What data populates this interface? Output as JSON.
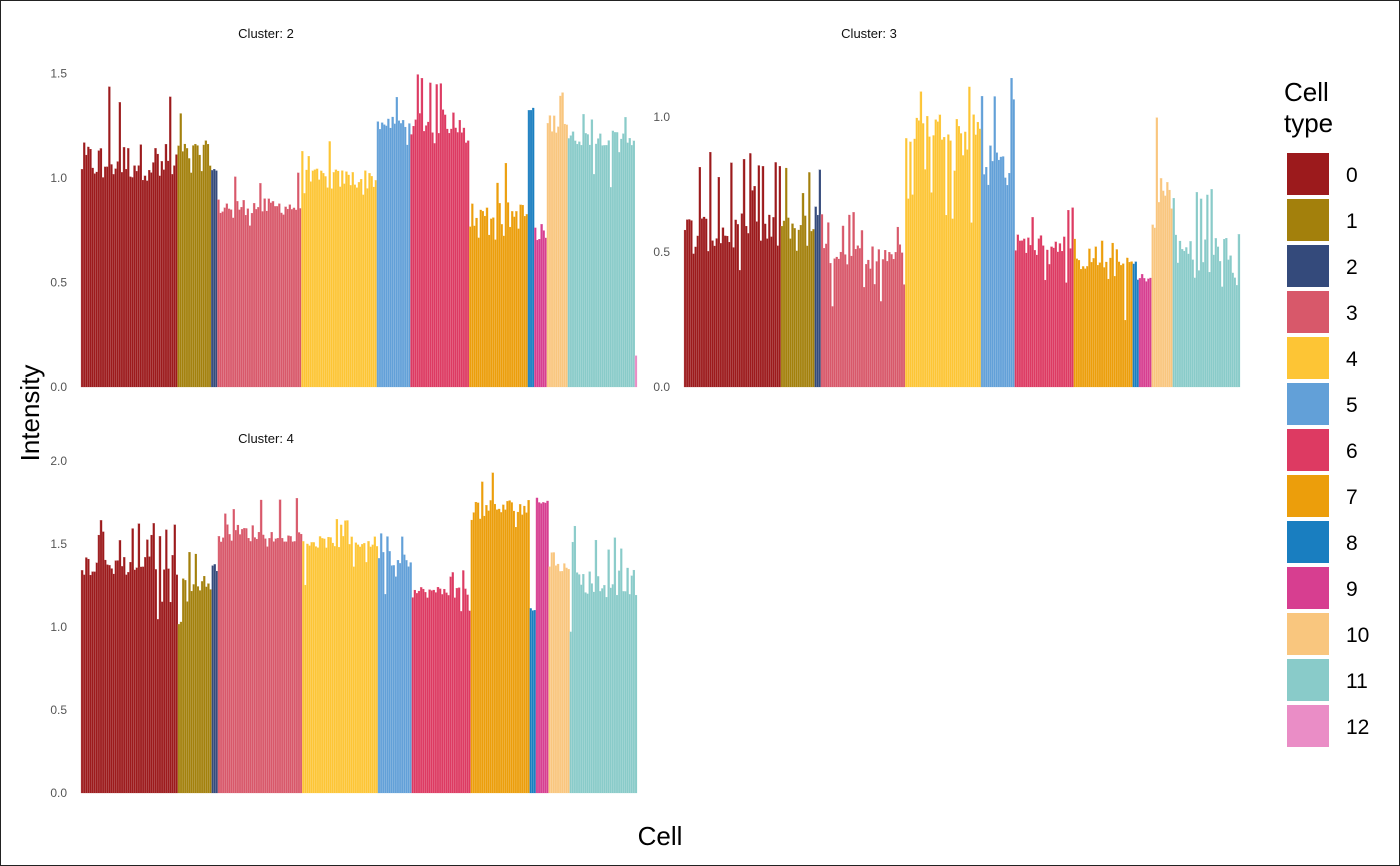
{
  "chart_data": {
    "type": "bar",
    "xlabel": "Cell",
    "ylabel": "Intensity",
    "legend": {
      "title": "Cell type",
      "title_lines": [
        "Cell",
        "type"
      ],
      "placement": "right",
      "entries": [
        {
          "label": "0",
          "color": "#9C1A1C"
        },
        {
          "label": "1",
          "color": "#A3800C"
        },
        {
          "label": "2",
          "color": "#344A7B"
        },
        {
          "label": "3",
          "color": "#D8586A"
        },
        {
          "label": "4",
          "color": "#FDC535"
        },
        {
          "label": "5",
          "color": "#62A0D8"
        },
        {
          "label": "6",
          "color": "#DD3A62"
        },
        {
          "label": "7",
          "color": "#EC9E0B"
        },
        {
          "label": "8",
          "color": "#197EC0"
        },
        {
          "label": "9",
          "color": "#D73E90"
        },
        {
          "label": "10",
          "color": "#F9C67E"
        },
        {
          "label": "11",
          "color": "#89CBC9"
        },
        {
          "label": "12",
          "color": "#EA8DC6"
        }
      ]
    },
    "panels": [
      {
        "title": "Cluster: 2",
        "ylim": [
          0,
          1.55
        ],
        "yticks": [
          "0.0",
          "0.5",
          "1.0",
          "1.5"
        ],
        "yticks_values": [
          0,
          0.5,
          1.0,
          1.5
        ],
        "groups": [
          {
            "type": 0,
            "n": 46,
            "base": 1.05,
            "hi": 1.46,
            "lo": 0.96
          },
          {
            "type": 1,
            "n": 16,
            "base": 1.1,
            "hi": 1.37,
            "lo": 1.0
          },
          {
            "type": 2,
            "n": 3,
            "base": 1.03,
            "hi": 1.11,
            "lo": 0.95
          },
          {
            "type": 3,
            "n": 40,
            "base": 0.85,
            "hi": 1.03,
            "lo": 0.76
          },
          {
            "type": 4,
            "n": 36,
            "base": 0.98,
            "hi": 1.2,
            "lo": 0.89
          },
          {
            "type": 5,
            "n": 16,
            "base": 1.25,
            "hi": 1.41,
            "lo": 1.14
          },
          {
            "type": 6,
            "n": 28,
            "base": 1.25,
            "hi": 1.52,
            "lo": 1.15
          },
          {
            "type": 7,
            "n": 28,
            "base": 0.8,
            "hi": 1.1,
            "lo": 0.7
          },
          {
            "type": 8,
            "n": 3,
            "base": 1.32,
            "hi": 1.39,
            "lo": 1.25
          },
          {
            "type": 9,
            "n": 6,
            "base": 0.7,
            "hi": 0.78,
            "lo": 0.6
          },
          {
            "type": 10,
            "n": 10,
            "base": 1.25,
            "hi": 1.47,
            "lo": 1.06
          },
          {
            "type": 11,
            "n": 32,
            "base": 1.18,
            "hi": 1.34,
            "lo": 0.92
          },
          {
            "type": 12,
            "n": 1,
            "base": 0.15,
            "hi": 0.15,
            "lo": 0.15
          }
        ]
      },
      {
        "title": "Cluster: 3",
        "ylim": [
          0,
          1.2
        ],
        "yticks": [
          "0.0",
          "0.5",
          "1.0"
        ],
        "yticks_values": [
          0,
          0.5,
          1.0
        ],
        "groups": [
          {
            "type": 0,
            "n": 46,
            "base": 0.55,
            "hi": 0.87,
            "lo": 0.38
          },
          {
            "type": 1,
            "n": 16,
            "base": 0.58,
            "hi": 0.82,
            "lo": 0.42
          },
          {
            "type": 2,
            "n": 3,
            "base": 0.66,
            "hi": 0.88,
            "lo": 0.5
          },
          {
            "type": 3,
            "n": 40,
            "base": 0.48,
            "hi": 0.66,
            "lo": 0.27
          },
          {
            "type": 4,
            "n": 36,
            "base": 0.95,
            "hi": 1.19,
            "lo": 0.6
          },
          {
            "type": 5,
            "n": 16,
            "base": 0.8,
            "hi": 1.18,
            "lo": 0.65
          },
          {
            "type": 6,
            "n": 28,
            "base": 0.52,
            "hi": 0.68,
            "lo": 0.38
          },
          {
            "type": 7,
            "n": 28,
            "base": 0.45,
            "hi": 0.55,
            "lo": 0.24
          },
          {
            "type": 8,
            "n": 3,
            "base": 0.45,
            "hi": 0.55,
            "lo": 0.3
          },
          {
            "type": 9,
            "n": 6,
            "base": 0.4,
            "hi": 0.47,
            "lo": 0.3
          },
          {
            "type": 10,
            "n": 10,
            "base": 0.7,
            "hi": 1.02,
            "lo": 0.45
          },
          {
            "type": 11,
            "n": 32,
            "base": 0.48,
            "hi": 0.79,
            "lo": 0.36
          },
          {
            "type": 12,
            "n": 0,
            "base": 0,
            "hi": 0,
            "lo": 0
          }
        ]
      },
      {
        "title": "Cluster: 4",
        "ylim": [
          0,
          2.0
        ],
        "yticks": [
          "0.0",
          "0.5",
          "1.0",
          "1.5",
          "2.0"
        ],
        "yticks_values": [
          0,
          0.5,
          1.0,
          1.5,
          2.0
        ],
        "groups": [
          {
            "type": 0,
            "n": 46,
            "base": 1.35,
            "hi": 1.65,
            "lo": 0.93
          },
          {
            "type": 1,
            "n": 16,
            "base": 1.25,
            "hi": 1.47,
            "lo": 1.0
          },
          {
            "type": 2,
            "n": 3,
            "base": 1.35,
            "hi": 1.55,
            "lo": 1.2
          },
          {
            "type": 3,
            "n": 40,
            "base": 1.55,
            "hi": 1.79,
            "lo": 1.48
          },
          {
            "type": 4,
            "n": 36,
            "base": 1.5,
            "hi": 1.66,
            "lo": 1.2
          },
          {
            "type": 5,
            "n": 16,
            "base": 1.4,
            "hi": 1.63,
            "lo": 1.15
          },
          {
            "type": 6,
            "n": 28,
            "base": 1.2,
            "hi": 1.36,
            "lo": 1.05
          },
          {
            "type": 7,
            "n": 28,
            "base": 1.7,
            "hi": 1.95,
            "lo": 1.6
          },
          {
            "type": 8,
            "n": 3,
            "base": 1.1,
            "hi": 1.2,
            "lo": 1.0
          },
          {
            "type": 9,
            "n": 6,
            "base": 1.75,
            "hi": 1.8,
            "lo": 1.65
          },
          {
            "type": 10,
            "n": 10,
            "base": 1.35,
            "hi": 1.49,
            "lo": 1.2
          },
          {
            "type": 11,
            "n": 32,
            "base": 1.25,
            "hi": 1.63,
            "lo": 0.97
          },
          {
            "type": 12,
            "n": 0,
            "base": 0,
            "hi": 0,
            "lo": 0
          }
        ]
      }
    ]
  }
}
